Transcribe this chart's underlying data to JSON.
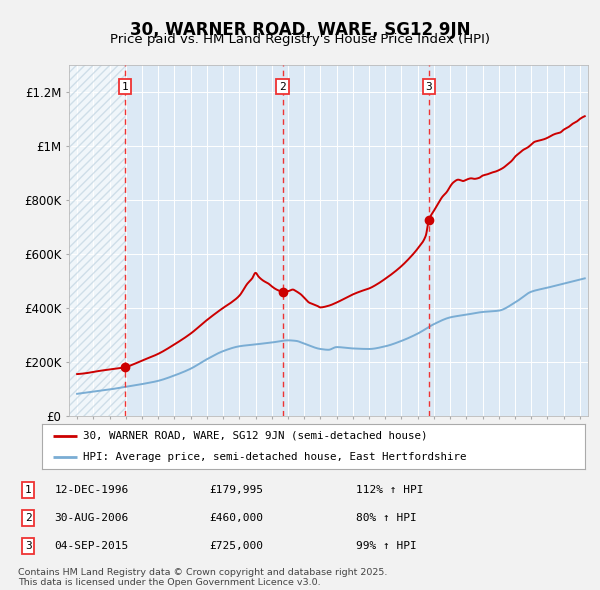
{
  "title": "30, WARNER ROAD, WARE, SG12 9JN",
  "subtitle": "Price paid vs. HM Land Registry's House Price Index (HPI)",
  "title_fontsize": 12,
  "subtitle_fontsize": 9.5,
  "background_color": "#e8f0f8",
  "plot_bg_color": "#dce9f5",
  "hatch_color": "#aabccc",
  "red_line_color": "#cc0000",
  "blue_line_color": "#7aadd4",
  "sale_marker_color": "#cc0000",
  "vline_color": "#ee3333",
  "ylim": [
    0,
    1300000
  ],
  "xlim_start": 1993.5,
  "xlim_end": 2025.5,
  "yticks": [
    0,
    200000,
    400000,
    600000,
    800000,
    1000000,
    1200000
  ],
  "ytick_labels": [
    "£0",
    "£200K",
    "£400K",
    "£600K",
    "£800K",
    "£1M",
    "£1.2M"
  ],
  "xticks": [
    1994,
    1995,
    1996,
    1997,
    1998,
    1999,
    2000,
    2001,
    2002,
    2003,
    2004,
    2005,
    2006,
    2007,
    2008,
    2009,
    2010,
    2011,
    2012,
    2013,
    2014,
    2015,
    2016,
    2017,
    2018,
    2019,
    2020,
    2021,
    2022,
    2023,
    2024,
    2025
  ],
  "sale_dates": [
    1996.95,
    2006.67,
    2015.68
  ],
  "sale_prices": [
    179995,
    460000,
    725000
  ],
  "sale_labels": [
    "1",
    "2",
    "3"
  ],
  "sale_date_strings": [
    "12-DEC-1996",
    "30-AUG-2006",
    "04-SEP-2015"
  ],
  "sale_price_strings": [
    "£179,995",
    "£460,000",
    "£725,000"
  ],
  "sale_hpi_strings": [
    "112% ↑ HPI",
    "80% ↑ HPI",
    "99% ↑ HPI"
  ],
  "legend_red_label": "30, WARNER ROAD, WARE, SG12 9JN (semi-detached house)",
  "legend_blue_label": "HPI: Average price, semi-detached house, East Hertfordshire",
  "footnote": "Contains HM Land Registry data © Crown copyright and database right 2025.\nThis data is licensed under the Open Government Licence v3.0.",
  "hatch_end_year": 1996.95
}
